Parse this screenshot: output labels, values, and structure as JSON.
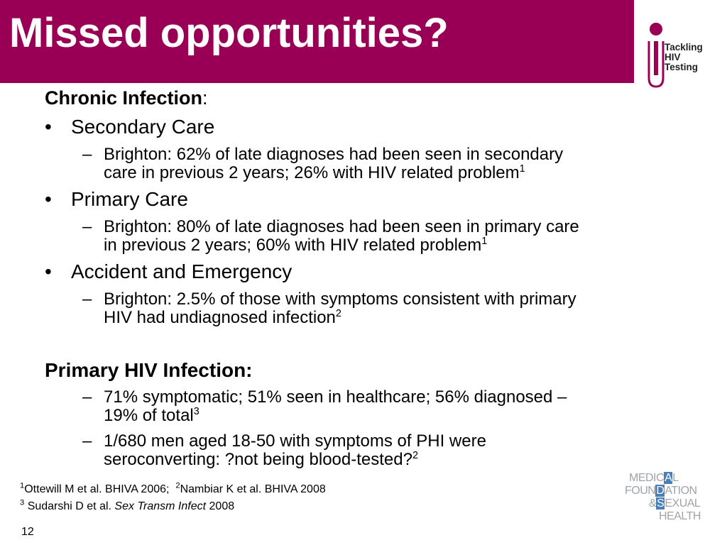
{
  "header": {
    "title": "Missed opportunities?",
    "bar_color": "#990055"
  },
  "logo_tackling": {
    "icon": "person-i-icon",
    "line1": "Tackling",
    "line2": "HIV",
    "line3": "Testing",
    "color": "#990055"
  },
  "body": {
    "chronic_heading": "Chronic Infection",
    "chronic_colon": ":",
    "items": [
      {
        "label": "Secondary Care",
        "sub_line1": "Brighton: 62% of late diagnoses had been seen in secondary",
        "sub_line2": "care in previous 2 years; 26% with HIV related problem",
        "sup": "1"
      },
      {
        "label": "Primary Care",
        "sub_line1": "Brighton: 80% of late diagnoses had been seen in primary care",
        "sub_line2": "in previous 2 years; 60% with HIV related problem",
        "sup": "1"
      },
      {
        "label": "Accident and Emergency",
        "sub_line1": "Brighton: 2.5% of those with symptoms consistent with primary",
        "sub_line2": "HIV had undiagnosed infection",
        "sup": "2"
      }
    ],
    "primary_heading": "Primary HIV Infection:",
    "primary_items": [
      {
        "line1": "71% symptomatic; 51% seen in healthcare; 56% diagnosed –",
        "line2": "19% of total",
        "sup": "3"
      },
      {
        "line1": "1/680 men aged 18-50 with symptoms of PHI were",
        "line2": "seroconverting: ?not being blood-tested?",
        "sup": "2"
      }
    ],
    "bullet_char": "•",
    "dash_char": "–"
  },
  "references": {
    "ref1_num": "1",
    "ref1_text": "Ottewill M et al. BHIVA 2006;",
    "ref2_num": "2",
    "ref2_text": "Nambiar K et al. BHIVA 2008",
    "ref3_num": "3",
    "ref3_author": "Sudarshi D et al.",
    "ref3_journal": "Sex Transm Infect",
    "ref3_year": "2008"
  },
  "footer": {
    "page_number": "12"
  },
  "logo_mfsh": {
    "pre1": "MEDIC",
    "hl1": "A",
    "post1": "L",
    "pre2": "FOUN",
    "hl2": "D",
    "post2": "ATION",
    "pre3": "&",
    "hl3": "S",
    "post3": "EXUAL",
    "line4": "HEALTH",
    "accent": "#4a7fb8",
    "text_color": "#a0a4a8"
  }
}
